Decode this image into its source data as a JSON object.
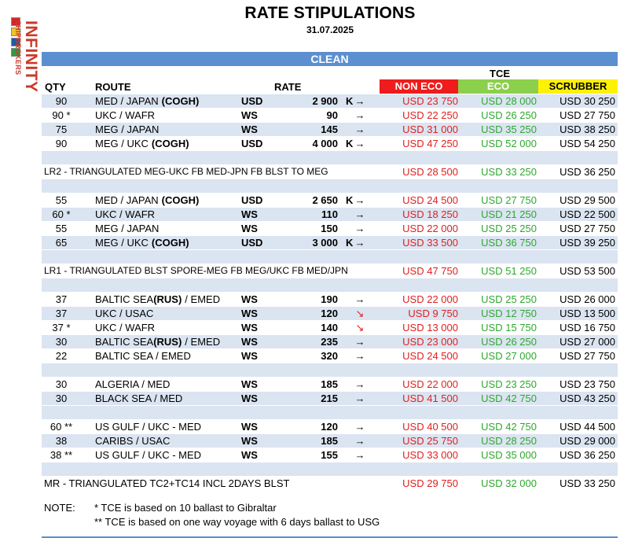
{
  "title": "RATE STIPULATIONS",
  "date": "31.07.2025",
  "logo": {
    "line1": "INFINITY",
    "line2": "SHIPBROKERS",
    "flag_colors": [
      "#d4262b",
      "#f2c12e",
      "#1e5aa8",
      "#2f9a3f",
      "#ffffff"
    ]
  },
  "section": "CLEAN",
  "headers": {
    "qty": "QTY",
    "route": "ROUTE",
    "rate": "RATE",
    "tce": "TCE",
    "non_eco": "NON ECO",
    "eco": "ECO",
    "scrubber": "SCRUBBER"
  },
  "colors": {
    "bar": "#5b8fd0",
    "non_eco": "#ee1c1c",
    "eco": "#8ccf4d",
    "scrubber": "#fef200",
    "shade": "#dbe4f1"
  },
  "rows": [
    {
      "type": "data",
      "shade": true,
      "qty": "90",
      "route": "MED / JAPAN",
      "route_bold": "(COGH)",
      "unit": "USD",
      "rate": "2 900",
      "k": "K",
      "arrow": "→",
      "non_eco": "USD 23 750",
      "eco": "USD 28 000",
      "scrubber": "USD 30 250"
    },
    {
      "type": "data",
      "shade": false,
      "qty": "90 *",
      "route": "UKC / WAFR",
      "route_bold": "",
      "unit": "WS",
      "rate": "90",
      "k": "",
      "arrow": "→",
      "non_eco": "USD 22 250",
      "eco": "USD 26 250",
      "scrubber": "USD 27 750"
    },
    {
      "type": "data",
      "shade": true,
      "qty": "75",
      "route": "MEG / JAPAN",
      "route_bold": "",
      "unit": "WS",
      "rate": "145",
      "k": "",
      "arrow": "→",
      "non_eco": "USD 31 000",
      "eco": "USD 35 250",
      "scrubber": "USD 38 250"
    },
    {
      "type": "data",
      "shade": false,
      "qty": "90",
      "route": "MEG / UKC",
      "route_bold": "(COGH)",
      "unit": "USD",
      "rate": "4 000",
      "k": "K",
      "arrow": "→",
      "non_eco": "USD 47 250",
      "eco": "USD 52 000",
      "scrubber": "USD 54 250"
    },
    {
      "type": "blank"
    },
    {
      "type": "tri",
      "text": "LR2 - TRIANGULATED MEG-UKC FB MED-JPN FB BLST TO MEG",
      "non_eco": "USD 28 500",
      "eco": "USD 33 250",
      "scrubber": "USD 36 250"
    },
    {
      "type": "blank"
    },
    {
      "type": "data",
      "shade": false,
      "qty": "55",
      "route": "MED / JAPAN",
      "route_bold": "(COGH)",
      "unit": "USD",
      "rate": "2 650",
      "k": "K",
      "arrow": "→",
      "non_eco": "USD 24 500",
      "eco": "USD 27 750",
      "scrubber": "USD 29 500"
    },
    {
      "type": "data",
      "shade": true,
      "qty": "60 *",
      "route": "UKC / WAFR",
      "route_bold": "",
      "unit": "WS",
      "rate": "110",
      "k": "",
      "arrow": "→",
      "non_eco": "USD 18 250",
      "eco": "USD 21 250",
      "scrubber": "USD 22 500"
    },
    {
      "type": "data",
      "shade": false,
      "qty": "55",
      "route": "MEG / JAPAN",
      "route_bold": "",
      "unit": "WS",
      "rate": "150",
      "k": "",
      "arrow": "→",
      "non_eco": "USD 22 000",
      "eco": "USD 25 250",
      "scrubber": "USD 27 750"
    },
    {
      "type": "data",
      "shade": true,
      "qty": "65",
      "route": "MEG / UKC",
      "route_bold": "(COGH)",
      "unit": "USD",
      "rate": "3 000",
      "k": "K",
      "arrow": "→",
      "non_eco": "USD 33 500",
      "eco": "USD 36 750",
      "scrubber": "USD 39 250"
    },
    {
      "type": "blank"
    },
    {
      "type": "tri",
      "text": "LR1 - TRIANGULATED BLST SPORE-MEG FB MEG/UKC FB MED/JPN",
      "non_eco": "USD 47 750",
      "eco": "USD 51 250",
      "scrubber": "USD 53 500"
    },
    {
      "type": "blank"
    },
    {
      "type": "data",
      "shade": false,
      "qty": "37",
      "route": "BALTIC SEA",
      "route_bold": "(RUS)",
      "route_tail": "/ EMED",
      "unit": "WS",
      "rate": "190",
      "k": "",
      "arrow": "→",
      "non_eco": "USD 22 000",
      "eco": "USD 25 250",
      "scrubber": "USD 26 000"
    },
    {
      "type": "data",
      "shade": true,
      "qty": "37",
      "route": "UKC / USAC",
      "route_bold": "",
      "unit": "WS",
      "rate": "120",
      "k": "",
      "arrow": "↘",
      "down": true,
      "non_eco": "USD 9 750",
      "eco": "USD 12 750",
      "scrubber": "USD 13 500"
    },
    {
      "type": "data",
      "shade": false,
      "qty": "37 *",
      "route": "UKC / WAFR",
      "route_bold": "",
      "unit": "WS",
      "rate": "140",
      "k": "",
      "arrow": "↘",
      "down": true,
      "non_eco": "USD 13 000",
      "eco": "USD 15 750",
      "scrubber": "USD 16 750"
    },
    {
      "type": "data",
      "shade": true,
      "qty": "30",
      "route": "BALTIC SEA",
      "route_bold": "(RUS)",
      "route_tail": "/ EMED",
      "unit": "WS",
      "rate": "235",
      "k": "",
      "arrow": "→",
      "non_eco": "USD 23 000",
      "eco": "USD 26 250",
      "scrubber": "USD 27 000"
    },
    {
      "type": "data",
      "shade": false,
      "qty": "22",
      "route": "BALTIC SEA / EMED",
      "route_bold": "",
      "unit": "WS",
      "rate": "320",
      "k": "",
      "arrow": "→",
      "non_eco": "USD 24 500",
      "eco": "USD 27 000",
      "scrubber": "USD 27 750"
    },
    {
      "type": "blank"
    },
    {
      "type": "data",
      "shade": false,
      "qty": "30",
      "route": "ALGERIA / MED",
      "route_bold": "",
      "unit": "WS",
      "rate": "185",
      "k": "",
      "arrow": "→",
      "non_eco": "USD 22 000",
      "eco": "USD 23 250",
      "scrubber": "USD 23 750"
    },
    {
      "type": "data",
      "shade": true,
      "qty": "30",
      "route": "BLACK SEA / MED",
      "route_bold": "",
      "unit": "WS",
      "rate": "215",
      "k": "",
      "arrow": "→",
      "non_eco": "USD 41 500",
      "eco": "USD 42 750",
      "scrubber": "USD 43 250"
    },
    {
      "type": "blank"
    },
    {
      "type": "data",
      "shade": false,
      "qty": "60 **",
      "route": "US GULF / UKC - MED",
      "route_bold": "",
      "unit": "WS",
      "rate": "120",
      "k": "",
      "arrow": "→",
      "non_eco": "USD 40 500",
      "eco": "USD 42 750",
      "scrubber": "USD 44 500"
    },
    {
      "type": "data",
      "shade": true,
      "qty": "38",
      "route": "CARIBS / USAC",
      "route_bold": "",
      "unit": "WS",
      "rate": "185",
      "k": "",
      "arrow": "→",
      "non_eco": "USD 25 750",
      "eco": "USD 28 250",
      "scrubber": "USD 29 000"
    },
    {
      "type": "data",
      "shade": false,
      "qty": "38 **",
      "route": "US GULF / UKC - MED",
      "route_bold": "",
      "unit": "WS",
      "rate": "155",
      "k": "",
      "arrow": "→",
      "non_eco": "USD 33 000",
      "eco": "USD 35 000",
      "scrubber": "USD 36 250"
    },
    {
      "type": "blank"
    },
    {
      "type": "tri",
      "mr": true,
      "text": "MR - TRIANGULATED TC2+TC14 INCL 2DAYS BLST",
      "non_eco": "USD 29 750",
      "eco": "USD 32 000",
      "scrubber": "USD 33 250"
    }
  ],
  "notes": {
    "label": "NOTE:",
    "line1": "*  TCE is based on 10 ballast to Gibraltar",
    "line2": "** TCE is based on one way voyage with 6 days ballast to USG"
  }
}
